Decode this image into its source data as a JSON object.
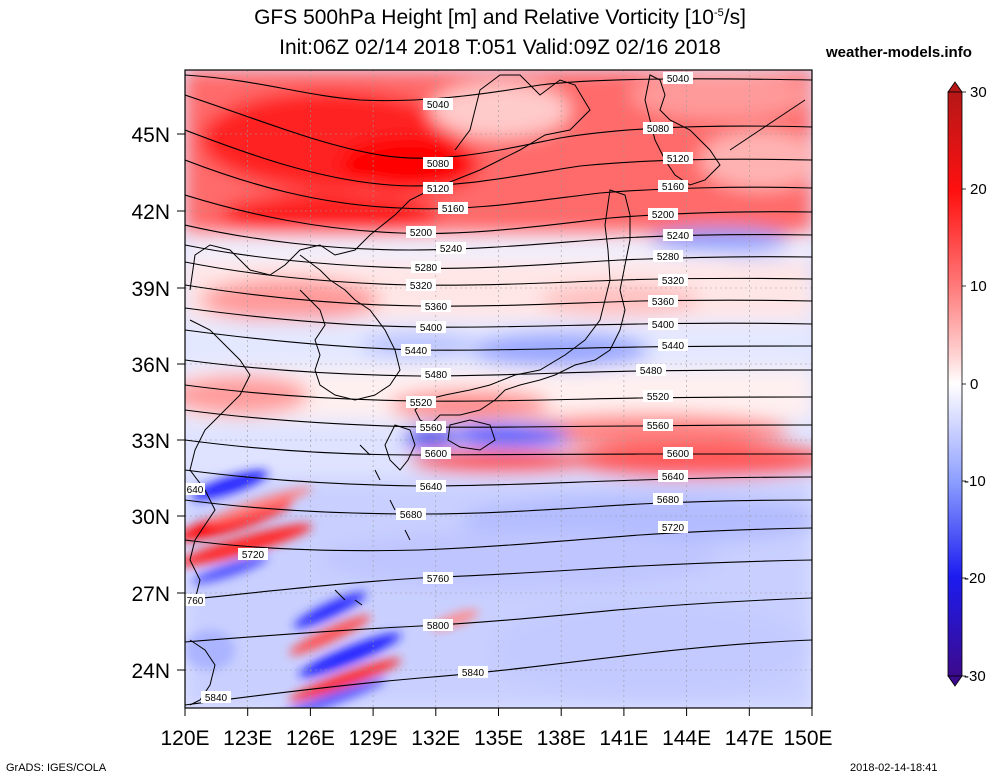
{
  "title": {
    "line1_prefix": "GFS 500hPa Height [m] and Relative Vorticity [10",
    "line1_exp": "-5",
    "line1_suffix": "/s]",
    "line2": "Init:06Z 02/14 2018 T:051 Valid:09Z 02/16 2018"
  },
  "site": "weather-models.info",
  "footer": {
    "left": "GrADS: IGES/COLA",
    "right": "2018-02-14-18:41"
  },
  "map": {
    "lon_labels": [
      "120E",
      "123E",
      "126E",
      "129E",
      "132E",
      "135E",
      "138E",
      "141E",
      "144E",
      "147E",
      "150E"
    ],
    "lat_labels": [
      "24N",
      "27N",
      "30N",
      "33N",
      "36N",
      "39N",
      "42N",
      "45N"
    ],
    "colorbar": {
      "labels": [
        "30",
        "20",
        "10",
        "0",
        "-10",
        "-20",
        "-30"
      ],
      "colors": {
        "max": "#b51717",
        "strong_pos": "#ff1010",
        "mid_pos": "#ff7878",
        "weak_pos": "#ffd2d2",
        "zero": "#ffffff",
        "weak_neg": "#d7dcff",
        "mid_neg": "#8a9cff",
        "strong_neg": "#1c1cf0",
        "min": "#3c0a8c"
      }
    },
    "contours": [
      {
        "label": "5040",
        "label2": "5040"
      },
      {
        "label": "5080",
        "label2": "5080"
      },
      {
        "label": "5120",
        "label2": "5120"
      },
      {
        "label": "5160",
        "label2": "5160"
      },
      {
        "label": "5200",
        "label2": "5200"
      },
      {
        "label": "5240",
        "label2": "5240"
      },
      {
        "label": "5280",
        "label2": "5280"
      },
      {
        "label": "5320",
        "label2": "5320"
      },
      {
        "label": "5360",
        "label2": "5360"
      },
      {
        "label": "5400",
        "label2": "5400"
      },
      {
        "label": "5440",
        "label2": "5440"
      },
      {
        "label": "5480",
        "label2": "5480"
      },
      {
        "label": "5520",
        "label2": "5520"
      },
      {
        "label": "5560",
        "label2": "5560"
      },
      {
        "label": "5600",
        "label2": "5600"
      },
      {
        "label": "5640",
        "label2": "5640"
      },
      {
        "label": "5680",
        "label2": "5680"
      },
      {
        "label": "5720",
        "label2": "5720"
      },
      {
        "label": "5760",
        "label2": "760"
      },
      {
        "label": "5800"
      },
      {
        "label": "5840",
        "label2": "5840"
      }
    ],
    "extra_labels": [
      "640",
      "5720"
    ]
  }
}
